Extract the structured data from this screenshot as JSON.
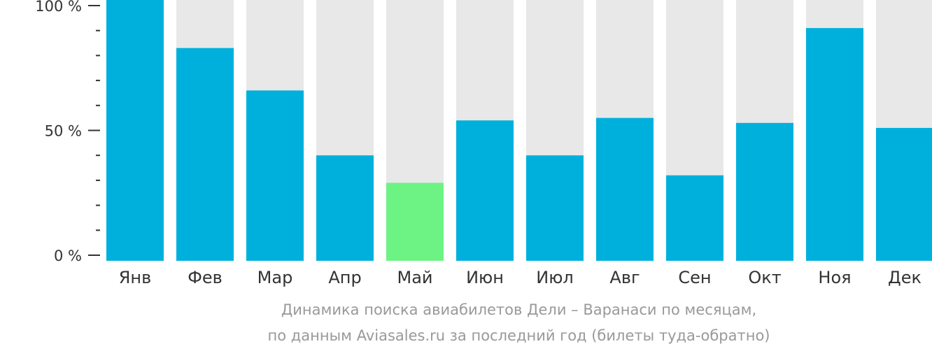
{
  "caption": {
    "line1": "Динамика поиска авиабилетов Дели – Варанаси по месяцам,",
    "line2": "по данным Aviasales.ru за последний год (билеты туда-обратно)"
  },
  "colors": {
    "bar": "#00b0dc",
    "highlight": "#6cf384",
    "track": "#e8e8e8",
    "axis": "#333333"
  },
  "chart_data": {
    "type": "bar",
    "categories": [
      "Янв",
      "Фев",
      "Мар",
      "Апр",
      "Май",
      "Июн",
      "Июл",
      "Авг",
      "Сен",
      "Окт",
      "Ноя",
      "Дек"
    ],
    "values": [
      100,
      83,
      66,
      40,
      29,
      54,
      40,
      55,
      32,
      53,
      91,
      51
    ],
    "highlight_index": 4,
    "ylim": [
      0,
      100
    ],
    "yticks": [
      {
        "value": 0,
        "label": "0 %"
      },
      {
        "value": 50,
        "label": "50 %"
      },
      {
        "value": 100,
        "label": "100 %"
      }
    ],
    "minor_tick_step": 10,
    "grid": false,
    "legend": "none"
  }
}
